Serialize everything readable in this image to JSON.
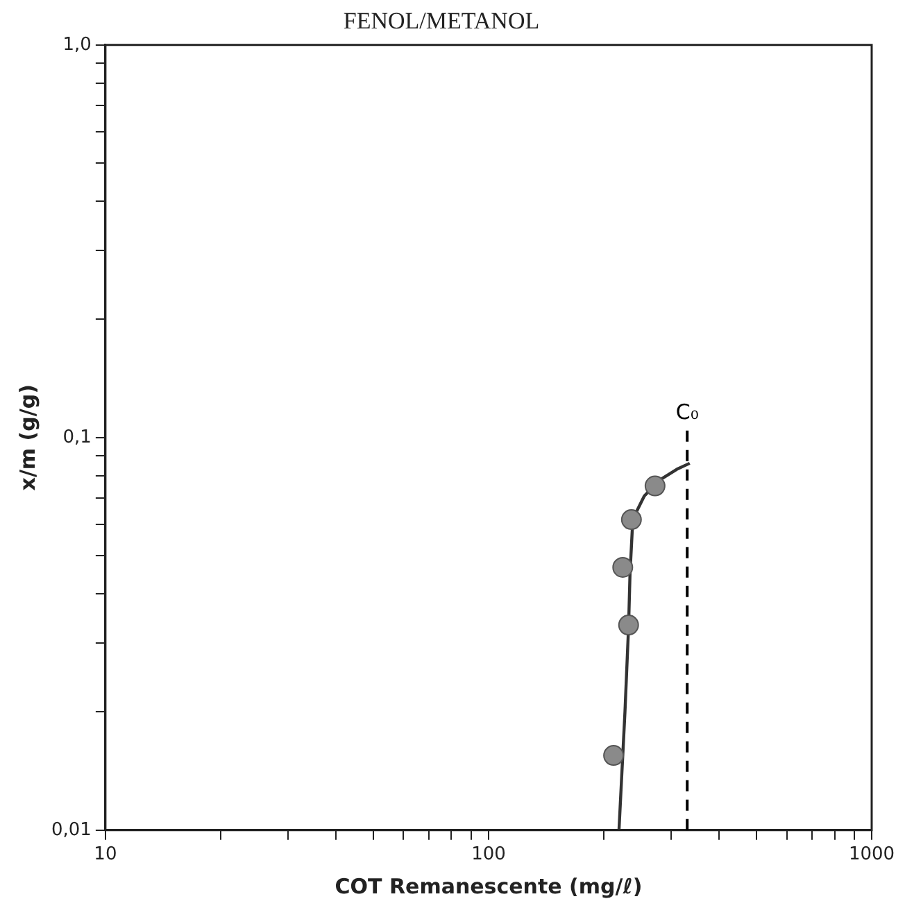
{
  "chart_data": {
    "type": "scatter",
    "title": "FENOL/METANOL",
    "xlabel": "COT Remanescente (mg/ℓ)",
    "ylabel": "x/m (g/g)",
    "log": "xy",
    "grid": false,
    "legend": false,
    "xlim": [
      10,
      1000
    ],
    "ylim": [
      0.01,
      1
    ],
    "xticks": [
      10,
      {
        "value": 20,
        "label": null
      },
      {
        "value": 30,
        "label": null
      },
      {
        "value": 40,
        "label": null
      },
      {
        "value": 50,
        "label": null
      },
      {
        "value": 60,
        "label": null
      },
      {
        "value": 70,
        "label": null
      },
      {
        "value": 80,
        "label": null
      },
      {
        "value": 90,
        "label": null
      },
      100,
      {
        "value": 200,
        "label": null
      },
      {
        "value": 300,
        "label": null
      },
      {
        "value": 400,
        "label": null
      },
      {
        "value": 500,
        "label": null
      },
      {
        "value": 600,
        "label": null
      },
      {
        "value": 700,
        "label": null
      },
      {
        "value": 800,
        "label": null
      },
      {
        "value": 900,
        "label": null
      },
      1000
    ],
    "yticks": [
      {
        "value": 0.01,
        "label": "0,01"
      },
      {
        "value": 0.02,
        "label": null
      },
      {
        "value": 0.03,
        "label": null
      },
      {
        "value": 0.04,
        "label": null
      },
      {
        "value": 0.05,
        "label": null
      },
      {
        "value": 0.06,
        "label": null
      },
      {
        "value": 0.07,
        "label": null
      },
      {
        "value": 0.08,
        "label": null
      },
      {
        "value": 0.09,
        "label": null
      },
      {
        "value": 0.1,
        "label": "0,1"
      },
      {
        "value": 0.2,
        "label": null
      },
      {
        "value": 0.3,
        "label": null
      },
      {
        "value": 0.4,
        "label": null
      },
      {
        "value": 0.5,
        "label": null
      },
      {
        "value": 0.6,
        "label": null
      },
      {
        "value": 0.7,
        "label": null
      },
      {
        "value": 0.8,
        "label": null
      },
      {
        "value": 0.9,
        "label": null
      },
      {
        "value": 1,
        "label": "1,0"
      }
    ],
    "ref_lines": [
      {
        "axis": "x",
        "value": 330,
        "label": "C₀",
        "line_style": "dashed",
        "color": "#000000"
      }
    ],
    "series": [
      {
        "type": "scatter",
        "marker": "circle",
        "color": "#8a8a8a",
        "x": [
          212,
          232,
          224,
          236,
          272
        ],
        "values": [
          0.0155,
          0.0333,
          0.0467,
          0.0618,
          0.0753
        ]
      },
      {
        "type": "line",
        "marker": "none",
        "line_style": "solid",
        "color": "#333333",
        "x": [
          219,
          227,
          232,
          234,
          238,
          255,
          280,
          310,
          335
        ],
        "values": [
          0.01,
          0.02,
          0.033,
          0.045,
          0.062,
          0.071,
          0.078,
          0.083,
          0.086
        ]
      }
    ]
  }
}
